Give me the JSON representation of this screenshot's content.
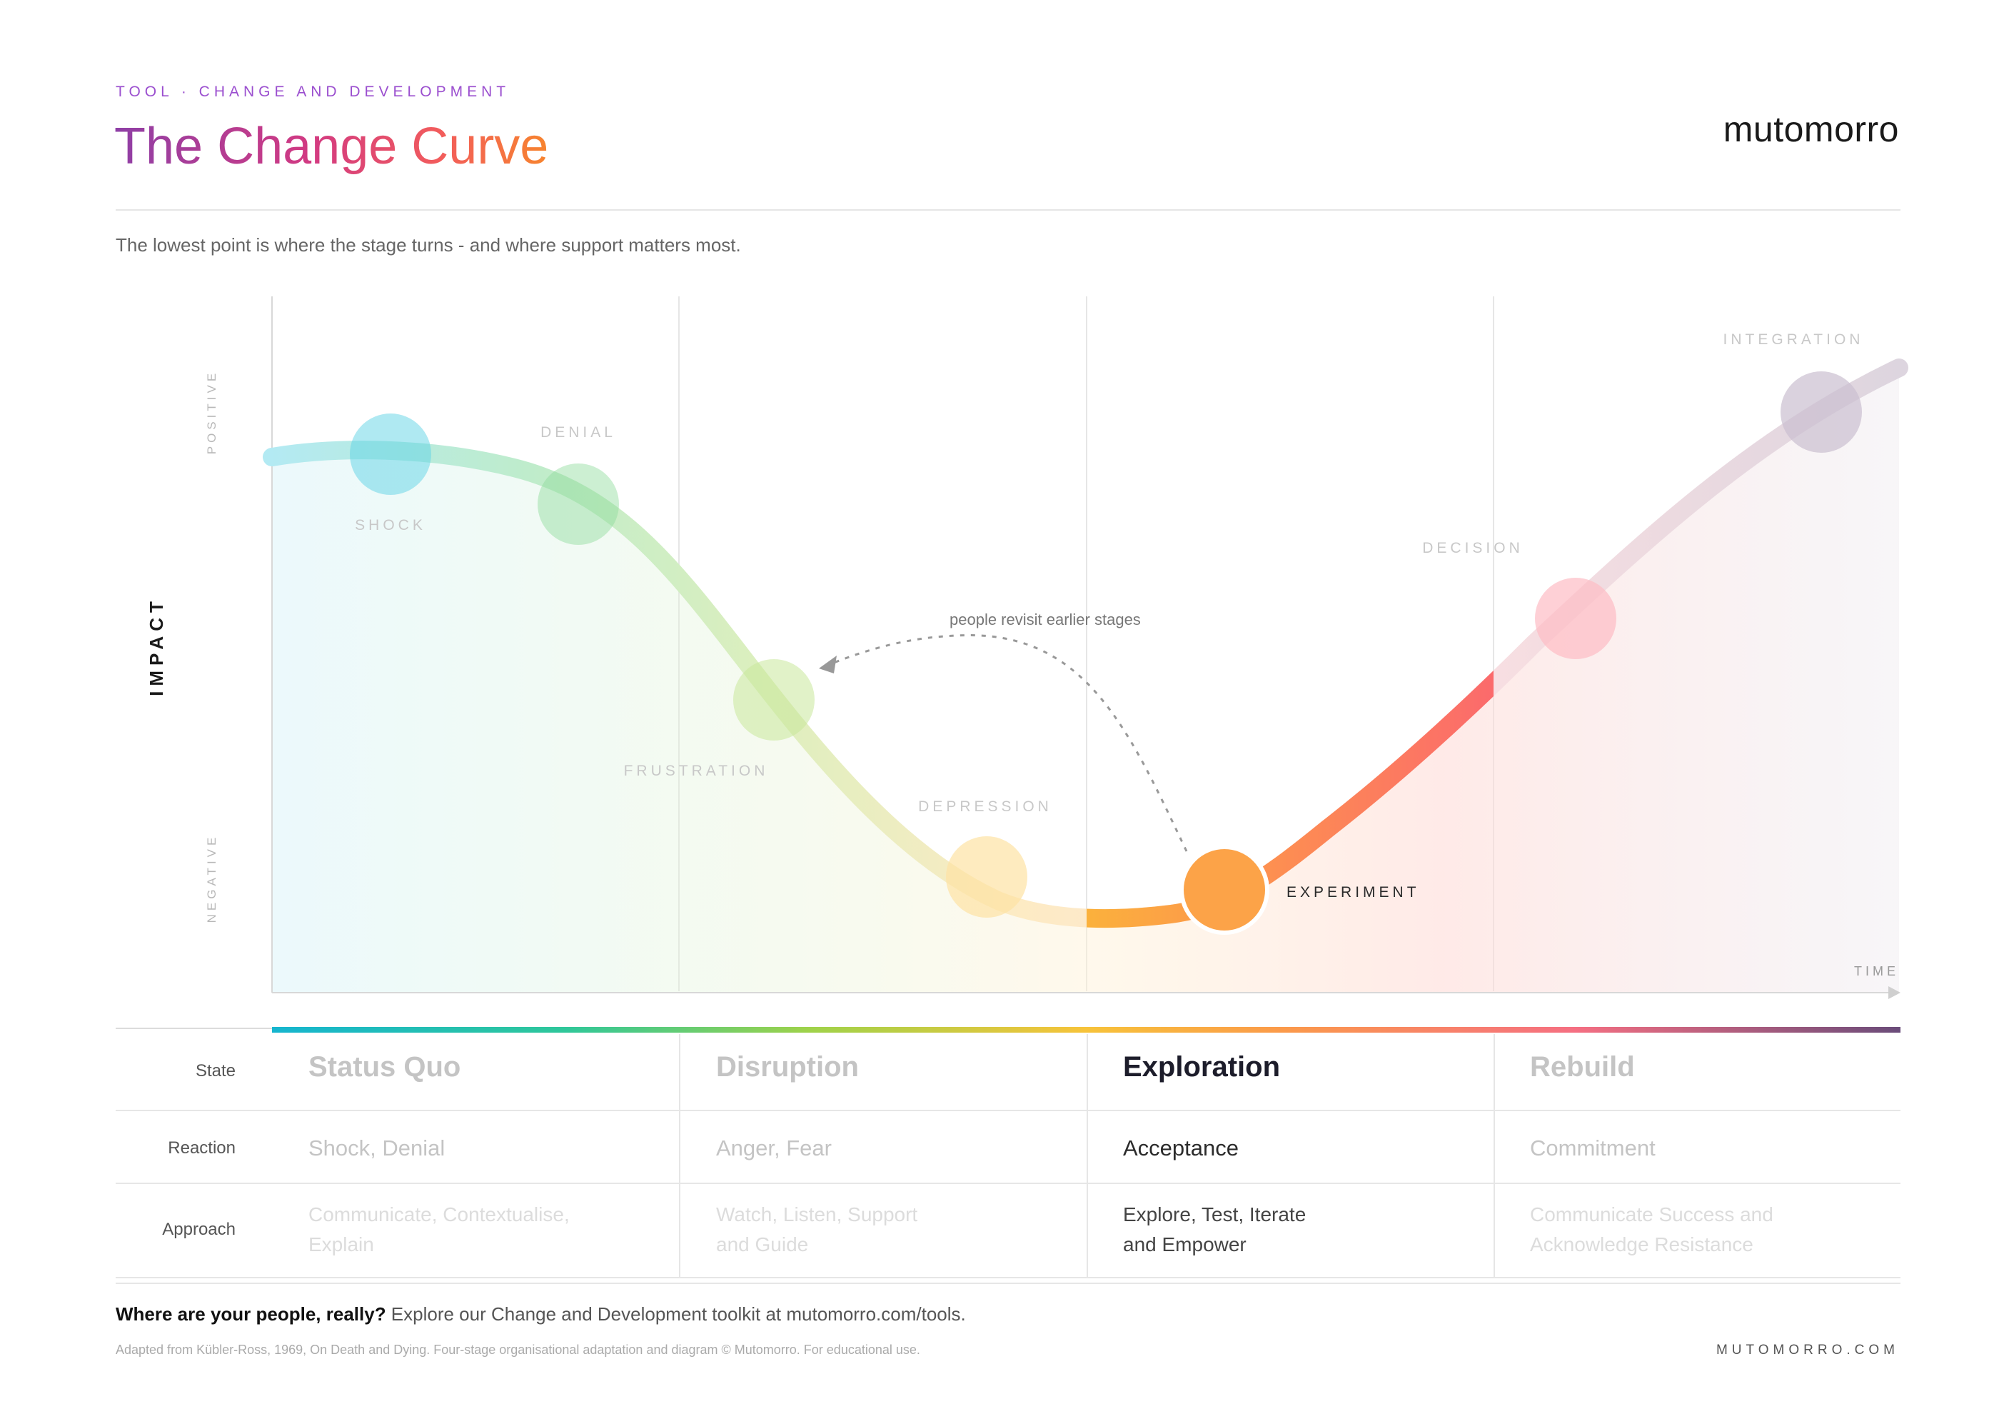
{
  "header": {
    "eyebrow": "TOOL · CHANGE AND DEVELOPMENT",
    "title": "The Change Curve",
    "brand": "mutomorro",
    "subtitle": "The lowest point is where the stage turns - and where support matters most."
  },
  "chart": {
    "y_axis_label": "IMPACT",
    "y_positive_label": "POSITIVE",
    "y_negative_label": "NEGATIVE",
    "x_axis_label": "TIME",
    "annotation": "people revisit earlier stages",
    "colors": {
      "shock": "#5fd3e6",
      "denial": "#8fdc9c",
      "frustration": "#c9e89a",
      "depression": "#fde3a4",
      "experiment": "#fca348",
      "decision": "#fdbcc4",
      "integration": "#cbbfd0",
      "gradient_start": "#16b5cf",
      "gradient_end": "#6a4c7a"
    },
    "stages": [
      {
        "label": "SHOCK",
        "active": false
      },
      {
        "label": "DENIAL",
        "active": false
      },
      {
        "label": "FRUSTRATION",
        "active": false
      },
      {
        "label": "DEPRESSION",
        "active": false
      },
      {
        "label": "EXPERIMENT",
        "active": true
      },
      {
        "label": "DECISION",
        "active": false
      },
      {
        "label": "INTEGRATION",
        "active": false
      }
    ]
  },
  "table": {
    "row_labels": {
      "state": "State",
      "reaction": "Reaction",
      "approach": "Approach"
    },
    "columns": [
      {
        "state": "Status Quo",
        "reaction": "Shock, Denial",
        "approach": "Communicate, Contextualise, Explain",
        "active": false
      },
      {
        "state": "Disruption",
        "reaction": "Anger, Fear",
        "approach": "Watch, Listen, Support and Guide",
        "active": false
      },
      {
        "state": "Exploration",
        "reaction": "Acceptance",
        "approach": "Explore, Test, Iterate and Empower",
        "active": true
      },
      {
        "state": "Rebuild",
        "reaction": "Commitment",
        "approach": "Communicate Success and Acknowledge Resistance",
        "active": false
      }
    ]
  },
  "footer": {
    "cta_bold": "Where are your people, really?",
    "cta_text": " Explore our Change and Development toolkit at mutomorro.com/tools.",
    "note": "Adapted from Kübler-Ross, 1969, On Death and Dying. Four-stage organisational adaptation and diagram © Mutomorro. For educational use.",
    "url": "MUTOMORRO.COM"
  }
}
